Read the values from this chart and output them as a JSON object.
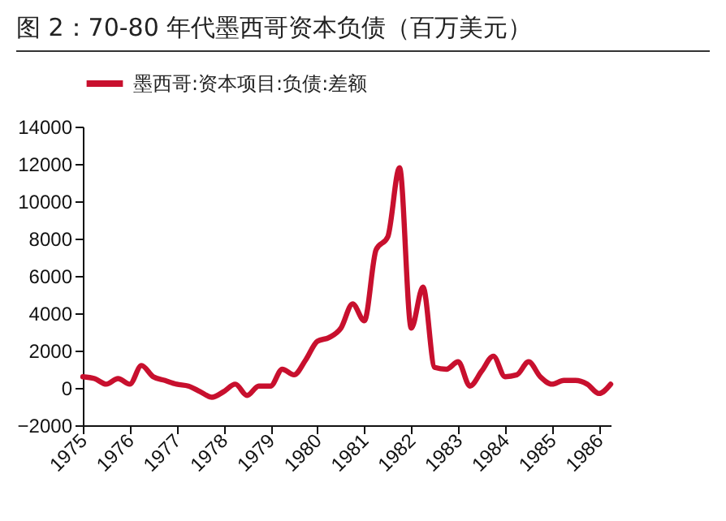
{
  "chart_data": {
    "type": "line",
    "title": "图 2：70-80 年代墨西哥资本负债（百万美元）",
    "categories": [
      "1975",
      null,
      null,
      null,
      "1976",
      null,
      null,
      null,
      "1977",
      null,
      null,
      null,
      "1978",
      null,
      null,
      null,
      "1979",
      null,
      null,
      null,
      "1980",
      null,
      null,
      null,
      "1981",
      null,
      null,
      null,
      "1982",
      null,
      null,
      null,
      "1983",
      null,
      null,
      null,
      "1984",
      null,
      null,
      null,
      "1985",
      null,
      null,
      null,
      "1986",
      null
    ],
    "series": [
      {
        "name": "墨西哥:资本项目:负债:差额",
        "color": "#c8102e",
        "values": [
          600,
          500,
          200,
          500,
          200,
          1200,
          600,
          400,
          200,
          100,
          -200,
          -500,
          -200,
          200,
          -400,
          100,
          100,
          1000,
          700,
          1500,
          2500,
          2700,
          3200,
          4500,
          3600,
          7400,
          8100,
          11800,
          3200,
          5400,
          1100,
          1000,
          1400,
          100,
          900,
          1700,
          600,
          700,
          1400,
          600,
          200,
          400,
          400,
          200,
          -300,
          200
        ]
      }
    ],
    "ylim": [
      -2000,
      14000
    ],
    "yticks": [
      -2000,
      0,
      2000,
      4000,
      6000,
      8000,
      10000,
      12000,
      14000
    ],
    "grid": false,
    "legend": "top",
    "marker": "none",
    "line_style": "solid"
  }
}
